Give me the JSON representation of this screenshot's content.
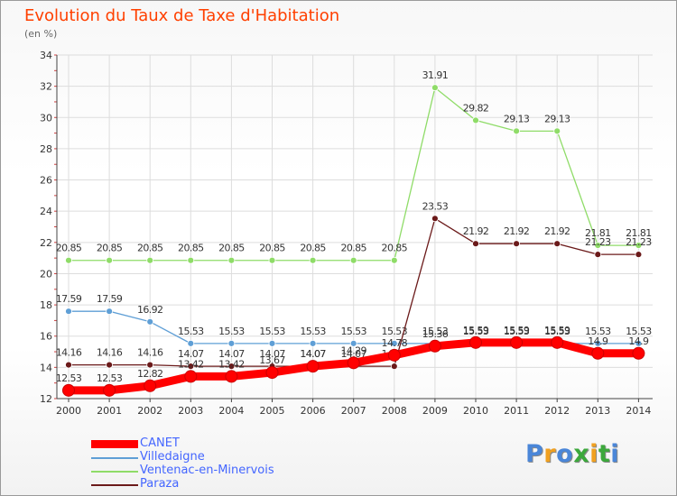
{
  "header": {
    "title": "Evolution du Taux de Taxe d'Habitation",
    "unit": "(en %)"
  },
  "chart_data": {
    "type": "line",
    "title": "Evolution du Taux de Taxe d'Habitation",
    "ylabel": "(en %)",
    "x": [
      "2000",
      "2001",
      "2002",
      "2003",
      "2004",
      "2005",
      "2006",
      "2007",
      "2008",
      "2009",
      "2010",
      "2011",
      "2012",
      "2013",
      "2014"
    ],
    "ylim": [
      12,
      34
    ],
    "yticks": [
      12,
      14,
      16,
      18,
      20,
      22,
      24,
      26,
      28,
      30,
      32,
      34
    ],
    "grid": true,
    "legend_position": "bottom-left",
    "series": [
      {
        "name": "CANET",
        "color": "#ff0000",
        "values": [
          12.53,
          12.53,
          12.82,
          13.42,
          13.42,
          13.67,
          14.07,
          14.29,
          14.78,
          15.36,
          15.59,
          15.59,
          15.59,
          14.9,
          14.9
        ]
      },
      {
        "name": "Villedaigne",
        "color": "#5f9fd6",
        "values": [
          17.59,
          17.59,
          16.92,
          15.53,
          15.53,
          15.53,
          15.53,
          15.53,
          15.53,
          15.53,
          15.53,
          15.53,
          15.53,
          15.53,
          15.53
        ]
      },
      {
        "name": "Ventenac-en-Minervois",
        "color": "#8fdc68",
        "values": [
          20.85,
          20.85,
          20.85,
          20.85,
          20.85,
          20.85,
          20.85,
          20.85,
          20.85,
          31.91,
          29.82,
          29.13,
          29.13,
          21.81,
          21.81
        ]
      },
      {
        "name": "Paraza",
        "color": "#6b1a1a",
        "values": [
          14.16,
          14.16,
          14.16,
          14.07,
          14.07,
          14.07,
          14.07,
          14.07,
          14.07,
          23.53,
          21.92,
          21.92,
          21.92,
          21.23,
          21.23
        ]
      }
    ]
  },
  "legend": {
    "items": [
      "CANET",
      "Villedaigne",
      "Ventenac-en-Minervois",
      "Paraza"
    ]
  },
  "logo": {
    "letters": [
      "P",
      "r",
      "o",
      "x",
      "i",
      "t",
      "i"
    ],
    "colors": [
      "#4a86d8",
      "#f0a020",
      "#4a86d8",
      "#3ca83c",
      "#f0a020",
      "#3ca83c",
      "#4a86d8"
    ]
  }
}
